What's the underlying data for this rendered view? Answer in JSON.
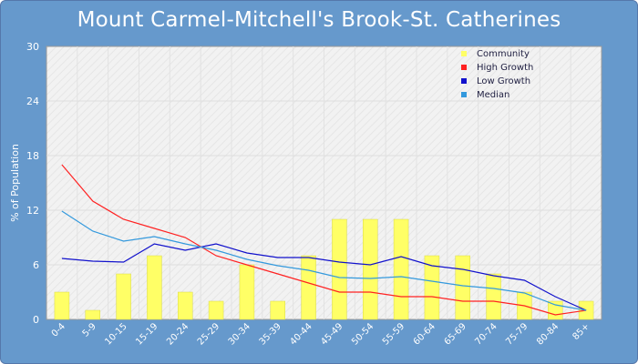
{
  "chart_data": {
    "type": "bar",
    "title": "Mount Carmel-Mitchell's Brook-St. Catherines",
    "xlabel": "",
    "ylabel": "% of Population",
    "ylim": [
      0,
      30
    ],
    "yticks": [
      "0",
      "6",
      "12",
      "18",
      "24",
      "30"
    ],
    "grid": true,
    "legend_position": "top-right",
    "categories": [
      "0-4",
      "5-9",
      "10-15",
      "15-19",
      "20-24",
      "25-29",
      "30-34",
      "35-39",
      "40-44",
      "45-49",
      "50-54",
      "55-59",
      "60-64",
      "65-69",
      "70-74",
      "75-79",
      "80-84",
      "85+"
    ],
    "series": [
      {
        "name": "Community",
        "kind": "bar",
        "color": "#ffff66",
        "values": [
          3,
          1,
          5,
          7,
          3,
          2,
          6,
          2,
          7,
          11,
          11,
          11,
          7,
          7,
          5,
          3,
          2,
          2
        ]
      },
      {
        "name": "High Growth",
        "kind": "line",
        "color": "#ff2222",
        "values": [
          17,
          13,
          11,
          10,
          9,
          7,
          6,
          5,
          4,
          3,
          3,
          2.5,
          2.5,
          2,
          2,
          1.5,
          0.5,
          1
        ]
      },
      {
        "name": "Low Growth",
        "kind": "line",
        "color": "#1111cc",
        "values": [
          6.7,
          6.4,
          6.3,
          8.3,
          7.6,
          8.3,
          7.3,
          6.8,
          6.8,
          6.3,
          6.0,
          6.9,
          5.9,
          5.5,
          4.8,
          4.3,
          2.5,
          1.0
        ]
      },
      {
        "name": "Median",
        "kind": "line",
        "color": "#3399dd",
        "values": [
          11.9,
          9.7,
          8.6,
          9.1,
          8.3,
          7.6,
          6.6,
          5.9,
          5.4,
          4.6,
          4.5,
          4.7,
          4.2,
          3.7,
          3.4,
          2.9,
          1.6,
          1.0
        ]
      }
    ]
  }
}
